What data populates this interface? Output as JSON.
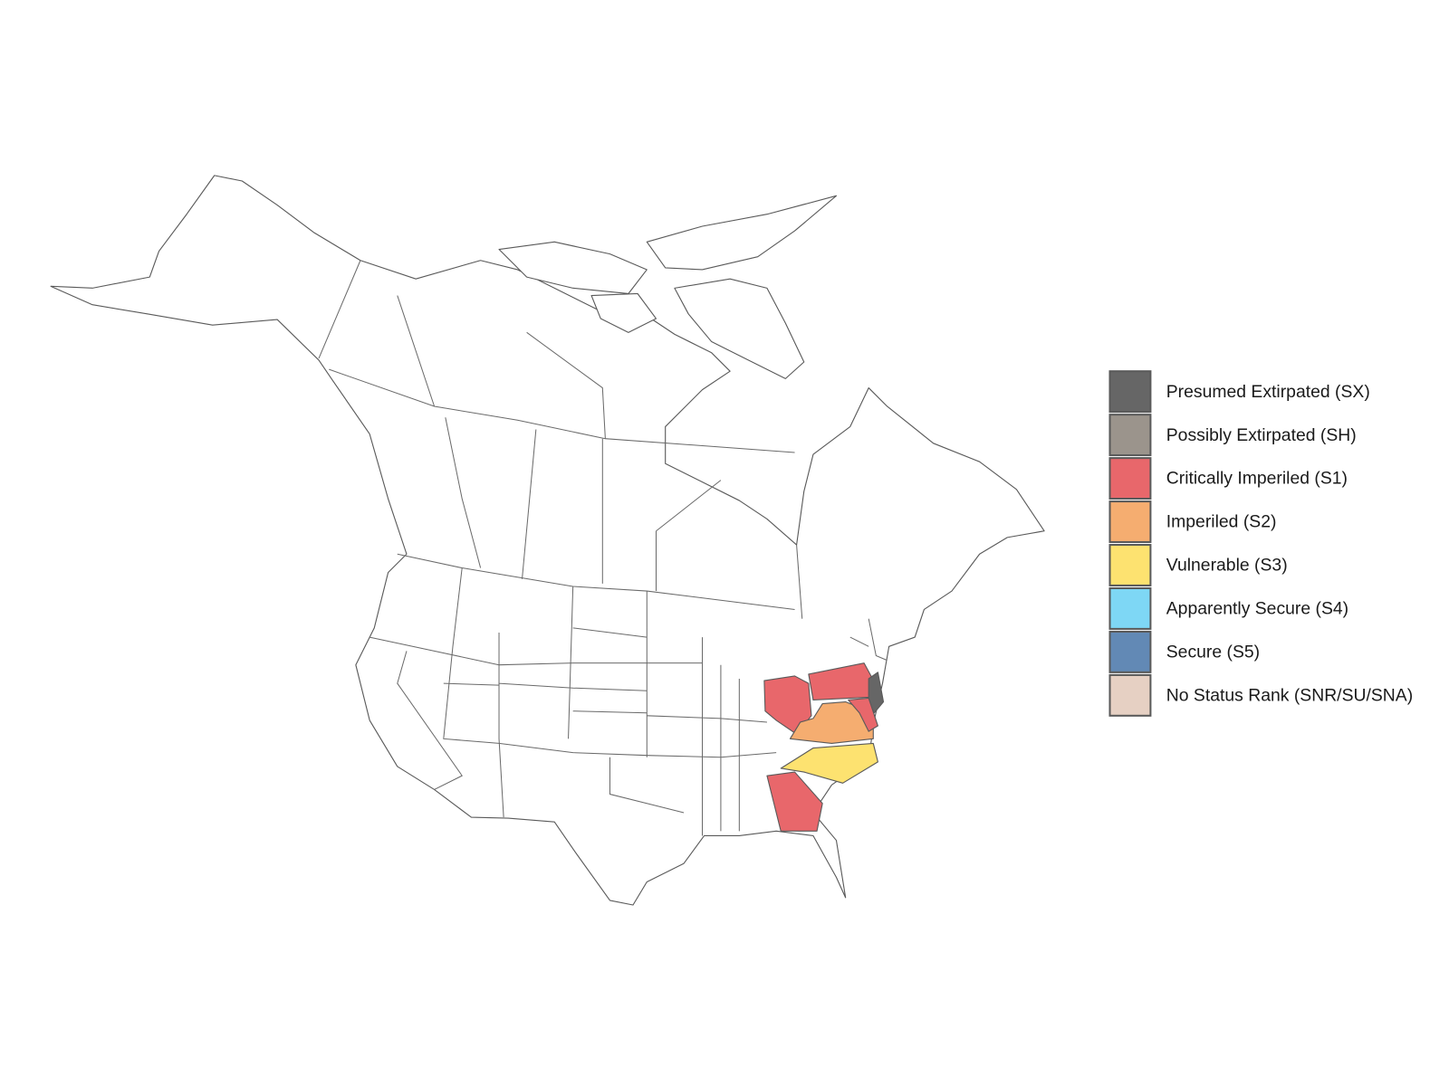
{
  "legend": {
    "items": [
      {
        "label": "Presumed Extirpated (SX)",
        "color": "#666666"
      },
      {
        "label": "Possibly Extirpated (SH)",
        "color": "#9b948c"
      },
      {
        "label": "Critically Imperiled (S1)",
        "color": "#e8676b"
      },
      {
        "label": "Imperiled (S2)",
        "color": "#f5ad70"
      },
      {
        "label": "Vulnerable (S3)",
        "color": "#fde270"
      },
      {
        "label": "Apparently Secure (S4)",
        "color": "#7ed7f5"
      },
      {
        "label": "Secure (S5)",
        "color": "#6289b5"
      },
      {
        "label": "No Status Rank (SNR/SU/SNA)",
        "color": "#e6d0c3"
      }
    ]
  }
}
